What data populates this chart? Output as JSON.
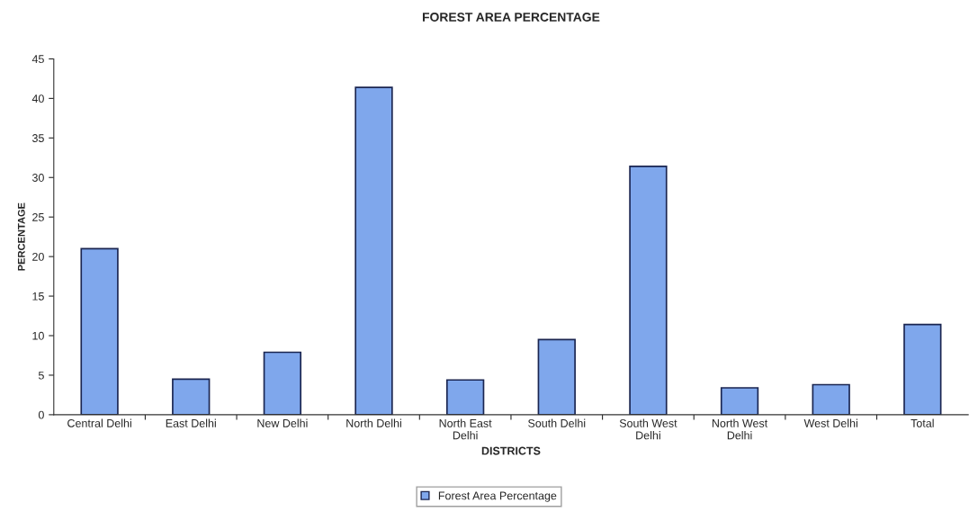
{
  "chart_data": {
    "type": "bar",
    "title": "FOREST AREA PERCENTAGE",
    "xlabel": "DISTRICTS",
    "ylabel": "PERCENTAGE",
    "categories": [
      "Central Delhi",
      "East Delhi",
      "New Delhi",
      "North Delhi",
      "North East\nDelhi",
      "South Delhi",
      "South West\nDelhi",
      "North West\nDelhi",
      "West Delhi",
      "Total"
    ],
    "series": [
      {
        "name": "Forest Area Percentage",
        "color": "#7fa7ec",
        "values": [
          21.0,
          4.5,
          7.9,
          41.4,
          4.4,
          9.5,
          31.4,
          3.4,
          3.8,
          11.4
        ]
      }
    ],
    "ylim": [
      0,
      45
    ],
    "yticks": [
      0,
      5,
      10,
      15,
      20,
      25,
      30,
      35,
      40,
      45
    ],
    "grid": false,
    "legend": "bottom"
  }
}
